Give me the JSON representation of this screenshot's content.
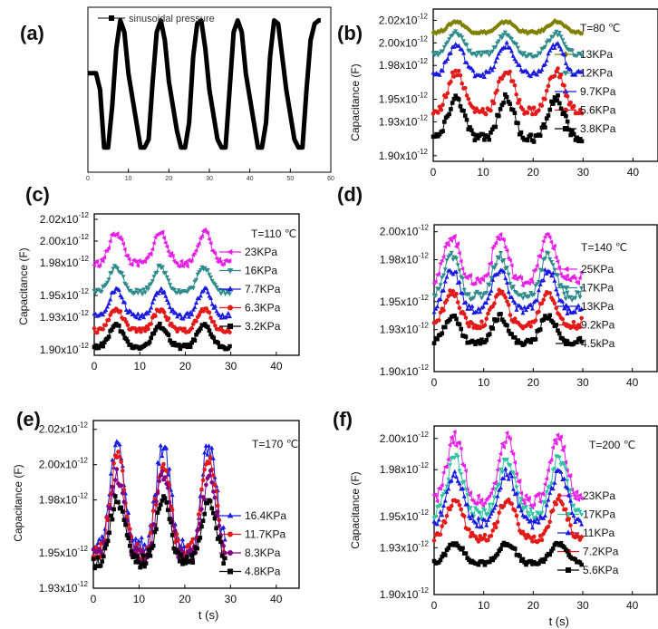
{
  "chart_data": [
    {
      "panel": "(a)",
      "type": "line",
      "legend": [
        "sinusoidal pressure"
      ],
      "xticks": [
        "0",
        "10",
        "20",
        "30",
        "40",
        "50",
        "60"
      ],
      "xlim": [
        0,
        60
      ],
      "ylim": [
        0,
        1
      ],
      "series": [
        {
          "name": "sinusoidal pressure",
          "color": "#000000",
          "points": [
            [
              0,
              0.6
            ],
            [
              2,
              0.6
            ],
            [
              3,
              0.5
            ],
            [
              4,
              0.15
            ],
            [
              5,
              0.15
            ],
            [
              6,
              0.4
            ],
            [
              7,
              0.75
            ],
            [
              8,
              0.92
            ],
            [
              9,
              0.85
            ],
            [
              10,
              0.6
            ],
            [
              11,
              0.45
            ],
            [
              12,
              0.3
            ],
            [
              13,
              0.15
            ],
            [
              14,
              0.15
            ],
            [
              15,
              0.2
            ],
            [
              16,
              0.55
            ],
            [
              17,
              0.85
            ],
            [
              18,
              0.92
            ],
            [
              19,
              0.8
            ],
            [
              20,
              0.55
            ],
            [
              21,
              0.4
            ],
            [
              22,
              0.25
            ],
            [
              23,
              0.15
            ],
            [
              24,
              0.15
            ],
            [
              25,
              0.3
            ],
            [
              26,
              0.7
            ],
            [
              27,
              0.9
            ],
            [
              28,
              0.92
            ],
            [
              29,
              0.75
            ],
            [
              30,
              0.5
            ],
            [
              31,
              0.35
            ],
            [
              32,
              0.2
            ],
            [
              33,
              0.15
            ],
            [
              34,
              0.15
            ],
            [
              35,
              0.5
            ],
            [
              36,
              0.85
            ],
            [
              37,
              0.92
            ],
            [
              38,
              0.85
            ],
            [
              39,
              0.6
            ],
            [
              40,
              0.45
            ],
            [
              41,
              0.3
            ],
            [
              42,
              0.15
            ],
            [
              43,
              0.15
            ],
            [
              44,
              0.3
            ],
            [
              45,
              0.7
            ],
            [
              46,
              0.92
            ],
            [
              47,
              0.9
            ],
            [
              48,
              0.7
            ],
            [
              49,
              0.5
            ],
            [
              50,
              0.35
            ],
            [
              51,
              0.2
            ],
            [
              52,
              0.15
            ],
            [
              53,
              0.15
            ],
            [
              54,
              0.5
            ],
            [
              55,
              0.8
            ],
            [
              56,
              0.9
            ],
            [
              57,
              0.92
            ],
            [
              57.5,
              0.92
            ]
          ]
        }
      ]
    },
    {
      "panel": "(b)",
      "type": "line",
      "title": "T=80 ℃",
      "ylabel": "Capacitance (F)",
      "yticks": [
        [
          "1.90x10",
          "-12"
        ],
        [
          "1.93x10",
          "-12"
        ],
        [
          "1.95x10",
          "-12"
        ],
        [
          "1.98x10",
          "-12"
        ],
        [
          "2.00x10",
          "-12"
        ],
        [
          "2.02x10",
          "-12"
        ]
      ],
      "xticks": [
        "0",
        "10",
        "20",
        "30",
        "40"
      ],
      "xlim": [
        0,
        45
      ],
      "ylim": [
        1.895,
        2.03
      ],
      "series": [
        {
          "name": "13KPa",
          "color": "#808000",
          "marker": "diamond",
          "base": 2.013,
          "amp": 0.006,
          "phase": 4.6
        },
        {
          "name": "12KPa",
          "color": "#2e8b8b",
          "marker": "triangle-down",
          "base": 1.997,
          "amp": 0.012,
          "phase": 4.6
        },
        {
          "name": "9.7KPa",
          "color": "#1a1adf",
          "marker": "triangle",
          "base": 1.982,
          "amp": 0.016,
          "phase": 4.6
        },
        {
          "name": "5.6KPa",
          "color": "#e31a1a",
          "marker": "circle",
          "base": 1.953,
          "amp": 0.022,
          "phase": 4.6
        },
        {
          "name": "3.8KPa",
          "color": "#000000",
          "marker": "square",
          "base": 1.929,
          "amp": 0.022,
          "phase": 4.6
        }
      ],
      "period": 10,
      "xmax": 30
    },
    {
      "panel": "(c)",
      "type": "line",
      "title": "T=110 ℃",
      "ylabel": "Capacitance (F)",
      "yticks": [
        [
          "1.90x10",
          "-12"
        ],
        [
          "1.93x10",
          "-12"
        ],
        [
          "1.95x10",
          "-12"
        ],
        [
          "1.98x10",
          "-12"
        ],
        [
          "2.00x10",
          "-12"
        ],
        [
          "2.02x10",
          "-12"
        ]
      ],
      "xticks": [
        "0",
        "10",
        "20",
        "30",
        "40"
      ],
      "xlim": [
        0,
        45
      ],
      "ylim": [
        1.895,
        2.025
      ],
      "series": [
        {
          "name": "23KPa",
          "color": "#e61ee6",
          "marker": "triangle-left",
          "base": 1.99,
          "amp": 0.018,
          "phase": 4.8
        },
        {
          "name": "16KPa",
          "color": "#2e8b8b",
          "marker": "triangle-down",
          "base": 1.962,
          "amp": 0.014,
          "phase": 4.8
        },
        {
          "name": "7.7KPa",
          "color": "#1a1adf",
          "marker": "triangle",
          "base": 1.94,
          "amp": 0.015,
          "phase": 4.8
        },
        {
          "name": "6.3KPa",
          "color": "#e31a1a",
          "marker": "circle",
          "base": 1.925,
          "amp": 0.012,
          "phase": 4.8
        },
        {
          "name": "3.2KPa",
          "color": "#000000",
          "marker": "square",
          "base": 1.91,
          "amp": 0.012,
          "phase": 4.8
        }
      ],
      "period": 9.7,
      "xmax": 30
    },
    {
      "panel": "(d)",
      "type": "line",
      "title": "T=140 ℃",
      "yticks": [
        [
          "1.90x10",
          "-12"
        ],
        [
          "1.93x10",
          "-12"
        ],
        [
          "1.95x10",
          "-12"
        ],
        [
          "1.98x10",
          "-12"
        ],
        [
          "2.00x10",
          "-12"
        ]
      ],
      "xticks": [
        "0",
        "10",
        "20",
        "30",
        "40"
      ],
      "xlim": [
        0,
        45
      ],
      "ylim": [
        1.9,
        2.005
      ],
      "series": [
        {
          "name": "25KPa",
          "color": "#e61ee6",
          "marker": "triangle-left",
          "base": 1.977,
          "amp": 0.02,
          "phase": 3.6
        },
        {
          "name": "17KPa",
          "color": "#2e8b8b",
          "marker": "triangle-down",
          "base": 1.965,
          "amp": 0.018,
          "phase": 3.6
        },
        {
          "name": "13KPa",
          "color": "#1a1adf",
          "marker": "triangle",
          "base": 1.955,
          "amp": 0.018,
          "phase": 3.6
        },
        {
          "name": "9.2kPa",
          "color": "#e31a1a",
          "marker": "circle",
          "base": 1.942,
          "amp": 0.015,
          "phase": 3.6
        },
        {
          "name": "4.5kPa",
          "color": "#000000",
          "marker": "square",
          "base": 1.928,
          "amp": 0.012,
          "phase": 3.6
        }
      ],
      "period": 9.7,
      "xmax": 30
    },
    {
      "panel": "(e)",
      "type": "line",
      "title": "T=170 ℃",
      "ylabel": "Capacitance (F)",
      "xlabel": "t (s)",
      "yticks": [
        [
          "1.93x10",
          "-12"
        ],
        [
          "1.95x10",
          "-12"
        ],
        [
          "1.98x10",
          "-12"
        ],
        [
          "2.00x10",
          "-12"
        ],
        [
          "2.02x10",
          "-12"
        ]
      ],
      "xticks": [
        "0",
        "10",
        "20",
        "30",
        "40"
      ],
      "xlim": [
        0,
        45
      ],
      "ylim": [
        1.93,
        2.025
      ],
      "series": [
        {
          "name": "16.4KPa",
          "color": "#1a1adf",
          "marker": "triangle",
          "base": 1.975,
          "amp": 0.036,
          "phase": 5.3
        },
        {
          "name": "11.7KPa",
          "color": "#e31a1a",
          "marker": "circle",
          "base": 1.97,
          "amp": 0.033,
          "phase": 5.3
        },
        {
          "name": "8.3KPa",
          "color": "#800080",
          "marker": "circle",
          "base": 1.965,
          "amp": 0.028,
          "phase": 5.3
        },
        {
          "name": "4.8KPa",
          "color": "#000000",
          "marker": "square",
          "base": 1.958,
          "amp": 0.022,
          "phase": 5.3
        }
      ],
      "period": 10,
      "xmax": 29
    },
    {
      "panel": "(f)",
      "type": "line",
      "title": "T=200 ℃",
      "ylabel": "Capacitance (F)",
      "xlabel": "t (s)",
      "yticks": [
        [
          "1.90x10",
          "-12"
        ],
        [
          "1.93x10",
          "-12"
        ],
        [
          "1.95x10",
          "-12"
        ],
        [
          "1.98x10",
          "-12"
        ],
        [
          "2.00x10",
          "-12"
        ]
      ],
      "xticks": [
        "0",
        "10",
        "20",
        "30",
        "40"
      ],
      "xlim": [
        0,
        45
      ],
      "ylim": [
        1.9,
        2.008
      ],
      "series": [
        {
          "name": "23KPa",
          "color": "#e61ee6",
          "marker": "triangle-left",
          "base": 1.975,
          "amp": 0.025,
          "phase": 4.2
        },
        {
          "name": "17KPa",
          "color": "#2ec4a0",
          "marker": "triangle-down",
          "base": 1.965,
          "amp": 0.022,
          "phase": 4.2
        },
        {
          "name": "11KPa",
          "color": "#1a1adf",
          "marker": "triangle",
          "base": 1.958,
          "amp": 0.02,
          "phase": 4.2
        },
        {
          "name": "7.2KPa",
          "color": "#e31a1a",
          "marker": "circle",
          "base": 1.945,
          "amp": 0.016,
          "phase": 4.2
        },
        {
          "name": "5.6KPa",
          "color": "#000000",
          "marker": "square",
          "base": 1.925,
          "amp": 0.008,
          "phase": 4.2
        }
      ],
      "period": 10.5,
      "xmax": 30
    }
  ]
}
